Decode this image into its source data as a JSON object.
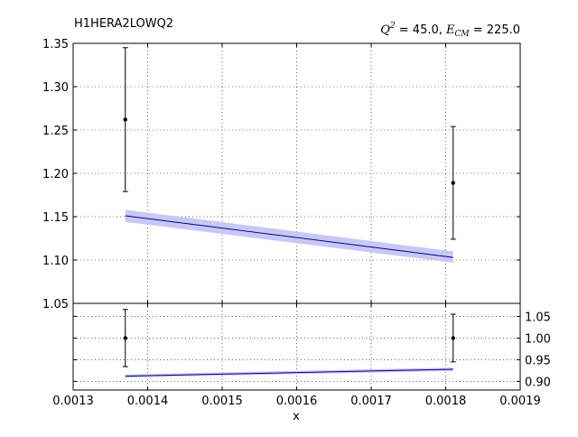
{
  "chart_data": [
    {
      "type": "line",
      "title": "H1HERA2LOWQ2",
      "kinematics": {
        "q2_symbol": "Q",
        "q2_power": "2",
        "q2_value_text": " = 45.0, ",
        "ecm_symbol": "E",
        "ecm_subscript": "CM",
        "ecm_value_text": " = 225.0"
      },
      "xlabel": "x",
      "xlim": [
        0.0013,
        0.0019
      ],
      "ylim": [
        1.05,
        1.35
      ],
      "grid": true,
      "x_ticks": [
        0.0013,
        0.0014,
        0.0015,
        0.0016,
        0.0017,
        0.0018,
        0.0019
      ],
      "x_tick_labels": [
        "0.0013",
        "0.0014",
        "0.0015",
        "0.0016",
        "0.0017",
        "0.0018",
        "0.0019"
      ],
      "y_ticks": [
        1.05,
        1.1,
        1.15,
        1.2,
        1.25,
        1.3,
        1.35
      ],
      "y_tick_labels": [
        "1.05",
        "1.10",
        "1.15",
        "1.20",
        "1.25",
        "1.30",
        "1.35"
      ],
      "data_points": [
        {
          "x": 0.00137,
          "y": 1.262,
          "err": 0.083
        },
        {
          "x": 0.00181,
          "y": 1.189,
          "err": 0.065
        }
      ],
      "theory": {
        "x": [
          0.00137,
          0.00181
        ],
        "central": [
          1.151,
          1.103
        ],
        "lower": [
          1.144,
          1.097
        ],
        "upper": [
          1.158,
          1.11
        ]
      },
      "colors": {
        "line": "#00008b",
        "band": "#c8c8f5",
        "points": "#000000"
      }
    },
    {
      "type": "line",
      "xlim": [
        0.0013,
        0.0019
      ],
      "ylim": [
        0.88,
        1.08
      ],
      "grid": true,
      "y_ticks": [
        0.9,
        0.95,
        1.0,
        1.05
      ],
      "y_tick_labels": [
        "0.90",
        "0.95",
        "1.00",
        "1.05"
      ],
      "data_points": [
        {
          "x": 0.00137,
          "y": 1.0,
          "err": 0.066
        },
        {
          "x": 0.00181,
          "y": 1.0,
          "err": 0.055
        }
      ],
      "theory": {
        "x": [
          0.00137,
          0.00181
        ],
        "central": [
          0.912,
          0.928
        ],
        "lower": [
          0.909,
          0.924
        ],
        "upper": [
          0.916,
          0.932
        ]
      },
      "colors": {
        "line": "#00008b",
        "band": "#c8c8f5",
        "points": "#000000"
      }
    }
  ]
}
